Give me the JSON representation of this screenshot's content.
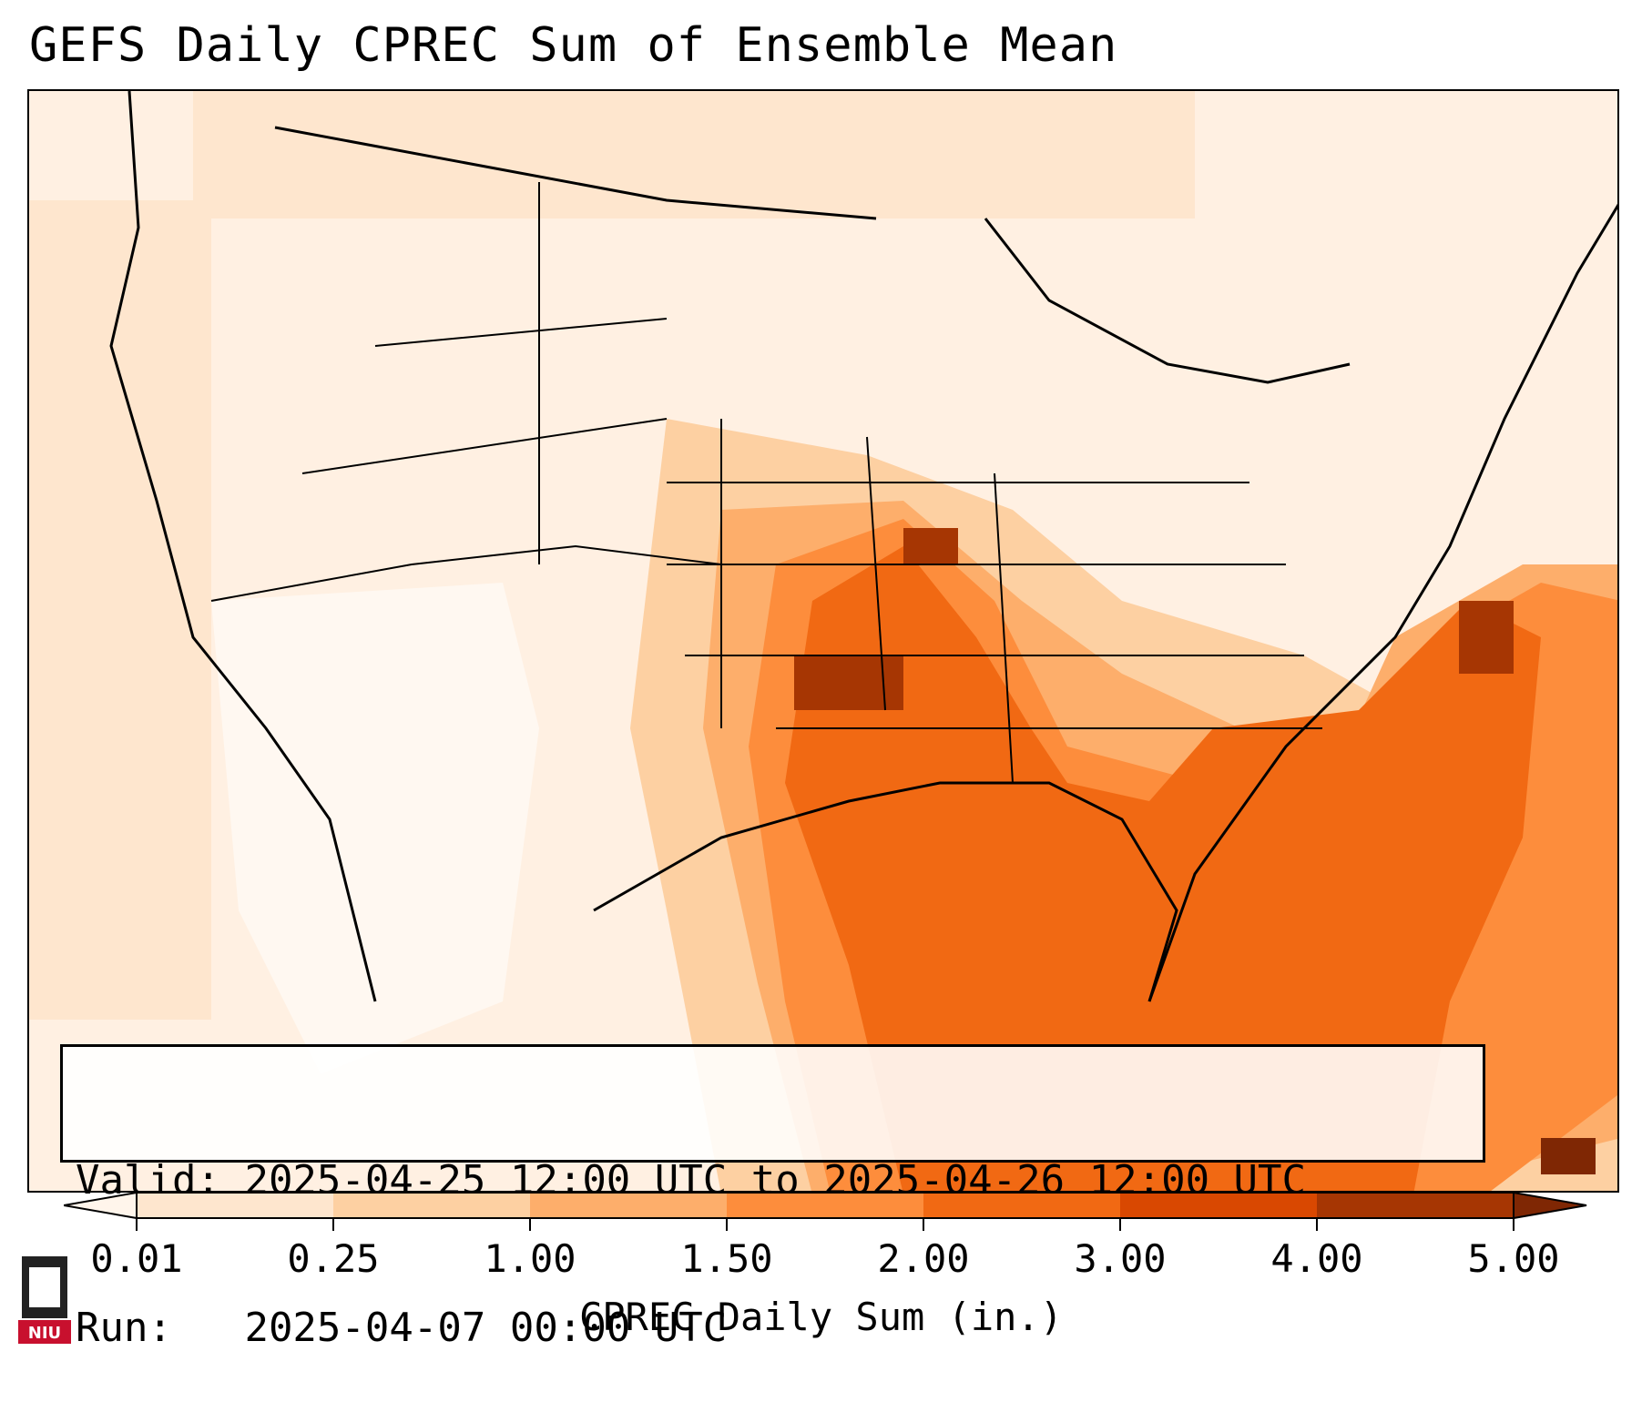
{
  "title": "GEFS Daily CPREC Sum of Ensemble Mean",
  "info": {
    "valid_label": "Valid:",
    "valid_value": "2025-04-25 12:00 UTC to 2025-04-26 12:00 UTC",
    "run_label": "Run:",
    "run_value": "2025-04-07 00:00 UTC"
  },
  "colorbar": {
    "ticks": [
      "0.01",
      "0.25",
      "1.00",
      "1.50",
      "2.00",
      "3.00",
      "4.00",
      "5.00"
    ],
    "colors": [
      "#fff5eb",
      "#fee6ce",
      "#fdd0a2",
      "#fdae6b",
      "#fd8d3c",
      "#f16913",
      "#d94801",
      "#a63603",
      "#7f2704"
    ],
    "label": "CPREC Daily Sum (in.)"
  },
  "logo": {
    "text": "NIU",
    "color": "#c8102e"
  }
}
